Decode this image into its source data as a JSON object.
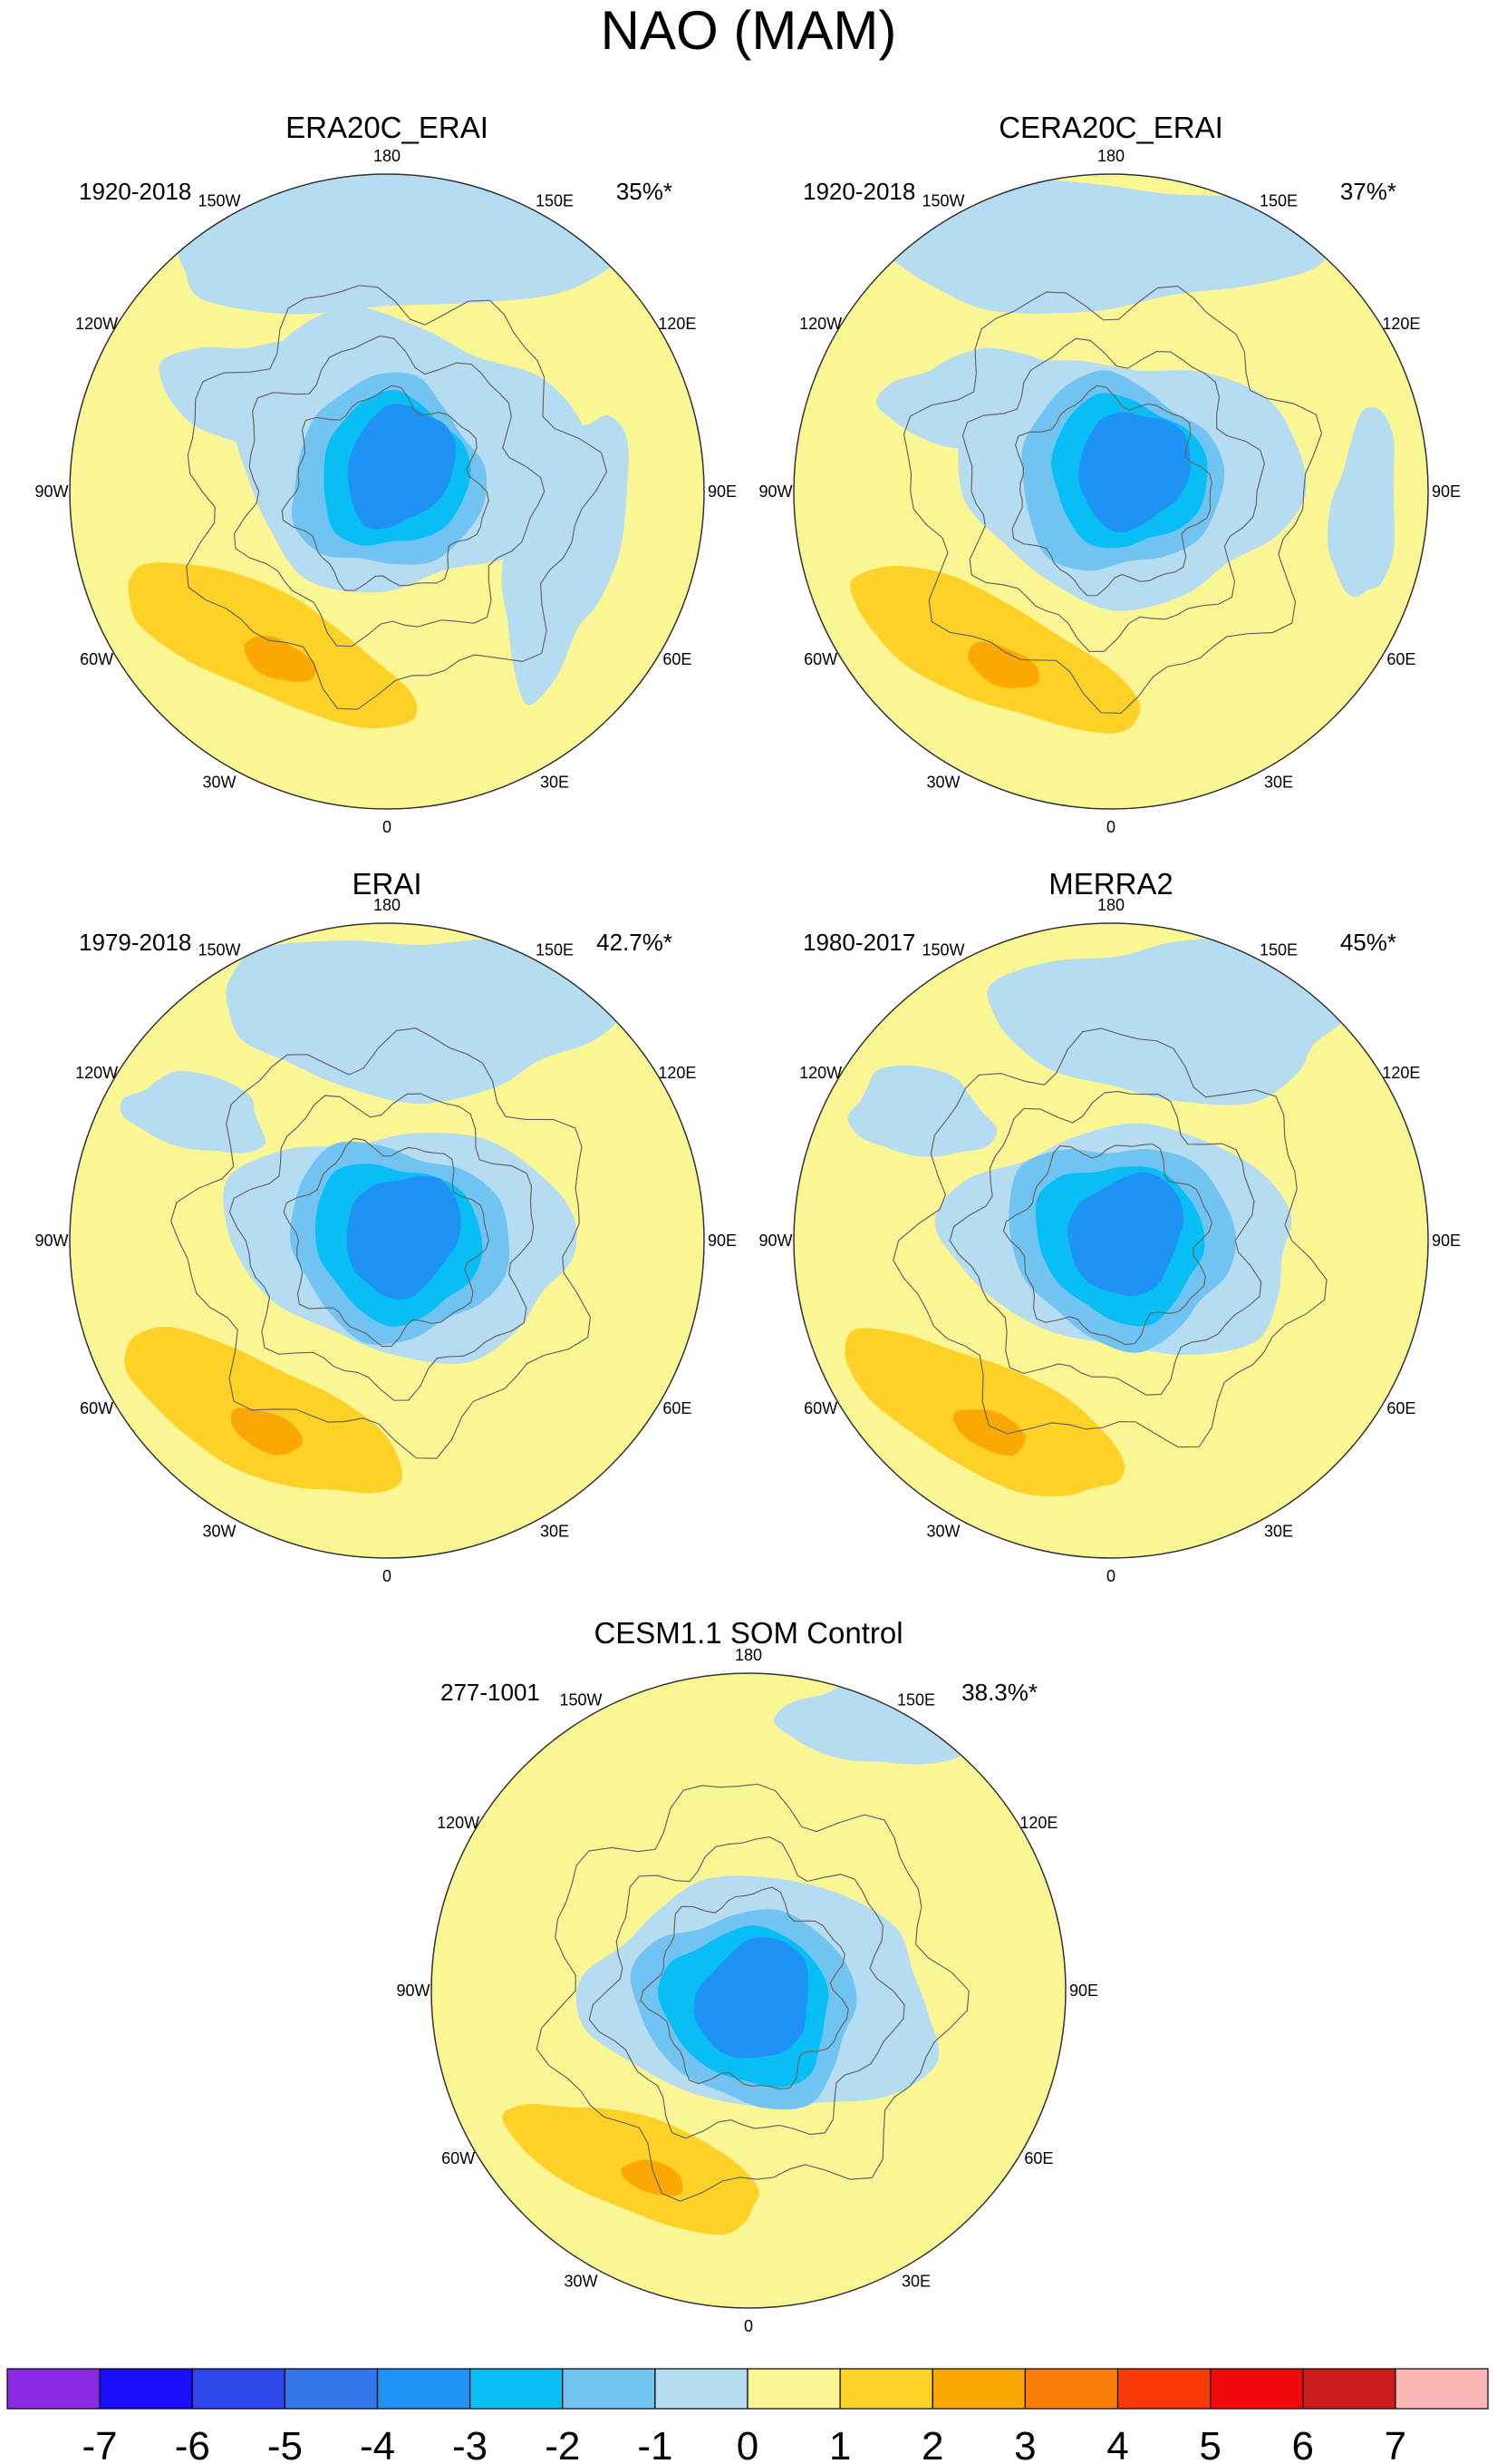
{
  "figure": {
    "title": "NAO (MAM)"
  },
  "colors": {
    "ocean_base": "#fbf694",
    "neg1": "#b5dcf1",
    "neg2": "#71c4f2",
    "neg3": "#08bef5",
    "neg4": "#1f92f5",
    "neg5": "#3477ea",
    "pos2": "#fdd126",
    "pos3": "#fba803",
    "coast": "#666666",
    "rim": "#333333"
  },
  "longitude_labels": [
    "180",
    "150E",
    "120E",
    "90E",
    "60E",
    "30E",
    "0",
    "30W",
    "60W",
    "90W",
    "120W",
    "150W"
  ],
  "chart_data": [
    {
      "type": "polar-contour",
      "title": "ERA20C_ERAI",
      "period": "1920-2018",
      "variance_explained": "35%*",
      "blue_center_lon_deg": 150,
      "orange_center_lon_deg": -45,
      "pattern": "era20c"
    },
    {
      "type": "polar-contour",
      "title": "CERA20C_ERAI",
      "period": "1920-2018",
      "variance_explained": "37%*",
      "blue_center_lon_deg": 145,
      "orange_center_lon_deg": -45,
      "pattern": "cera20c"
    },
    {
      "type": "polar-contour",
      "title": "ERAI",
      "period": "1979-2018",
      "variance_explained": "42.7%*",
      "blue_center_lon_deg": 140,
      "orange_center_lon_deg": -50,
      "pattern": "erai"
    },
    {
      "type": "polar-contour",
      "title": "MERRA2",
      "period": "1980-2017",
      "variance_explained": "45%*",
      "blue_center_lon_deg": 140,
      "orange_center_lon_deg": -50,
      "pattern": "merra2"
    },
    {
      "type": "polar-contour",
      "title": "CESM1.1 SOM Control",
      "period": "277-1001",
      "variance_explained": "38.3%*",
      "blue_center_lon_deg": 160,
      "orange_center_lon_deg": -40,
      "pattern": "cesm"
    }
  ],
  "colorbar": {
    "labels": [
      "-7",
      "-6",
      "-5",
      "-4",
      "-3",
      "-2",
      "-1",
      "0",
      "1",
      "2",
      "3",
      "4",
      "5",
      "6",
      "7"
    ],
    "colors": [
      "#8a2be2",
      "#1a0dfb",
      "#2e47ea",
      "#3477ea",
      "#1f92f5",
      "#08bef5",
      "#71c4f2",
      "#b5dcf1",
      "#fbf694",
      "#fdd126",
      "#fba803",
      "#f97e09",
      "#f93a06",
      "#f00a0a",
      "#cd1c1c",
      "#fcb5b5"
    ]
  }
}
